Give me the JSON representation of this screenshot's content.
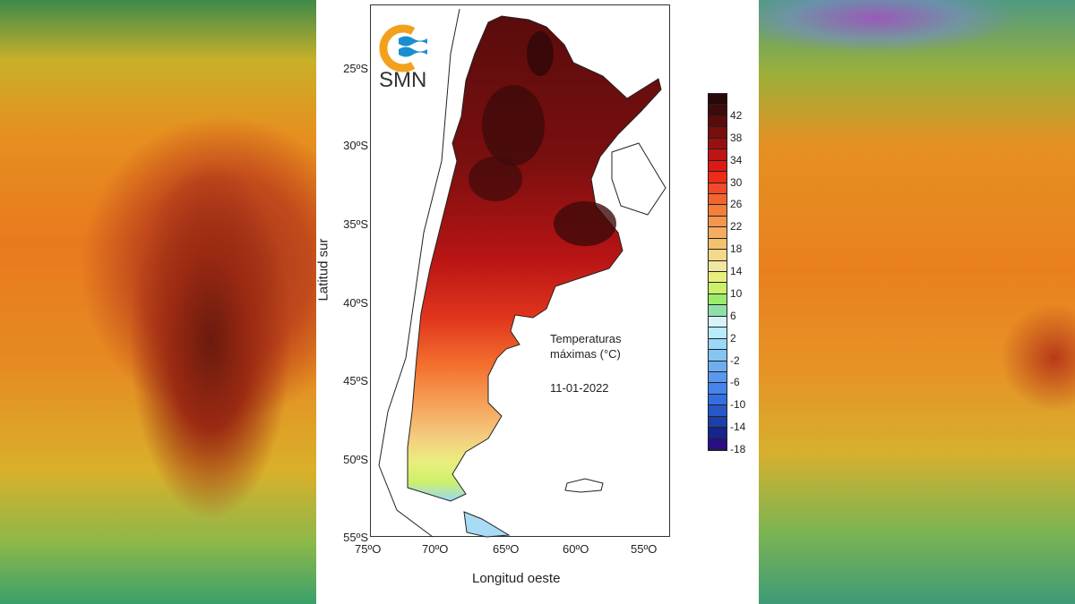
{
  "logo": {
    "text": "SMN",
    "colors": {
      "ring": "#f2a11d",
      "waves": "#1a8fd0"
    }
  },
  "map": {
    "title": "Temperaturas máximas (°C)",
    "title_line1": "Temperaturas",
    "title_line2": "máximas (°C)",
    "date": "11-01-2022",
    "xlabel": "Longitud oeste",
    "ylabel": "Latitud sur",
    "lon_ticks": [
      "75ºO",
      "70ºO",
      "65ºO",
      "60ºO",
      "55ºO"
    ],
    "lat_ticks": [
      "25ºS",
      "30ºS",
      "35ºS",
      "40ºS",
      "45ºS",
      "50ºS",
      "55ºS"
    ]
  },
  "colorbar": {
    "labels": [
      "42",
      "38",
      "34",
      "30",
      "26",
      "22",
      "18",
      "14",
      "10",
      "6",
      "2",
      "-2",
      "-6",
      "-10",
      "-14",
      "-18"
    ],
    "range": [
      -18,
      46
    ],
    "step": 2,
    "colors": [
      "#2a0708",
      "#3f0a0a",
      "#5a0c0c",
      "#780f0f",
      "#9a1010",
      "#be1414",
      "#dc1a14",
      "#ee2a18",
      "#f2492a",
      "#f3652f",
      "#f47e3a",
      "#f5964e",
      "#f5ac62",
      "#f4c26c",
      "#f4d98a",
      "#f2e7a0",
      "#e9ef7e",
      "#cdf06a",
      "#9bec6a",
      "#8ee0a8",
      "#d6f3fb",
      "#b8ecfb",
      "#9ad8f7",
      "#84c6f2",
      "#6eaef0",
      "#5a98ee",
      "#4684ea",
      "#336fe2",
      "#2756c8",
      "#1c3fa8",
      "#16258a",
      "#2a0e86",
      "#2f0a6e"
    ]
  }
}
